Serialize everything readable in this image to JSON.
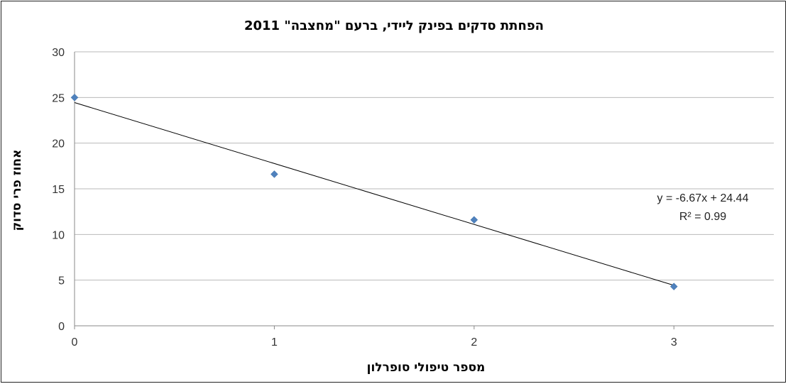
{
  "chart_data": {
    "type": "scatter",
    "title": "הפחתת סדקים בפינק ליידי, ברעם \"מחצבה\" 2011",
    "xlabel": "מספר טיפולי סופרלון",
    "ylabel": "אחוז פרי סדוק",
    "xlim": [
      0,
      3.5
    ],
    "ylim": [
      0,
      30
    ],
    "x_ticks": [
      "0",
      "1",
      "2",
      "3"
    ],
    "y_ticks": [
      "0",
      "5",
      "10",
      "15",
      "20",
      "25",
      "30"
    ],
    "grid": true,
    "points": [
      {
        "x": 0,
        "y": 25
      },
      {
        "x": 1,
        "y": 16.6
      },
      {
        "x": 2,
        "y": 11.6
      },
      {
        "x": 3,
        "y": 4.3
      }
    ],
    "trendline": {
      "slope": -6.67,
      "intercept": 24.44
    },
    "equation_text": "y = -6.67x + 24.44",
    "r2_text": "R² = 0.99",
    "marker_color": "#4f81bd",
    "line_color": "#000000"
  }
}
